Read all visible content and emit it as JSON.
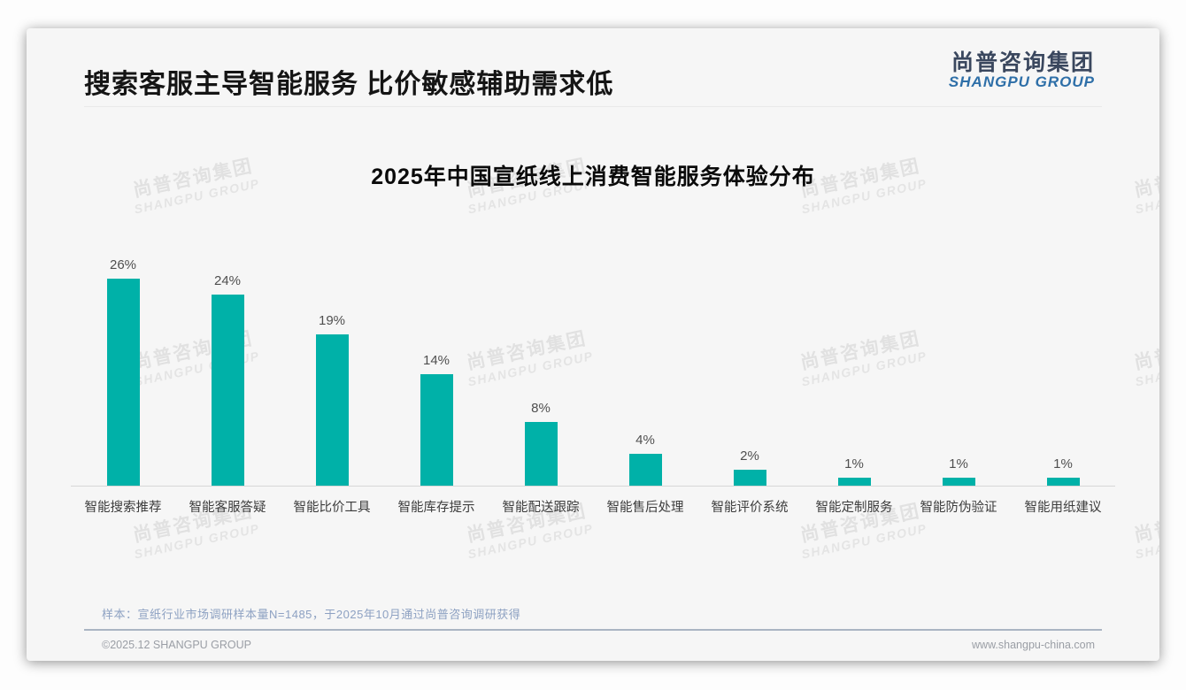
{
  "header": {
    "title": "搜索客服主导智能服务 比价敏感辅助需求低"
  },
  "logo": {
    "cn": "尚普咨询集团",
    "en": "SHANGPU GROUP"
  },
  "watermark": {
    "cn": "尚普咨询集团",
    "en": "SHANGPU GROUP"
  },
  "chart_data": {
    "type": "bar",
    "title": "2025年中国宣纸线上消费智能服务体验分布",
    "categories": [
      "智能搜索推荐",
      "智能客服答疑",
      "智能比价工具",
      "智能库存提示",
      "智能配送跟踪",
      "智能售后处理",
      "智能评价系统",
      "智能定制服务",
      "智能防伪验证",
      "智能用纸建议"
    ],
    "values": [
      26,
      24,
      19,
      14,
      8,
      4,
      2,
      1,
      1,
      1
    ],
    "value_labels": [
      "26%",
      "24%",
      "19%",
      "14%",
      "8%",
      "4%",
      "2%",
      "1%",
      "1%",
      "1%"
    ],
    "unit": "%",
    "bar_color": "#00b1a8",
    "ylim": [
      0,
      28
    ],
    "grid": false,
    "legend": "none",
    "xlabel": "",
    "ylabel": ""
  },
  "footnote": {
    "text": "样本：宣纸行业市场调研样本量N=1485，于2025年10月通过尚普咨询调研获得"
  },
  "footer": {
    "left": "©2025.12 SHANGPU GROUP",
    "right": "www.shangpu-china.com"
  }
}
